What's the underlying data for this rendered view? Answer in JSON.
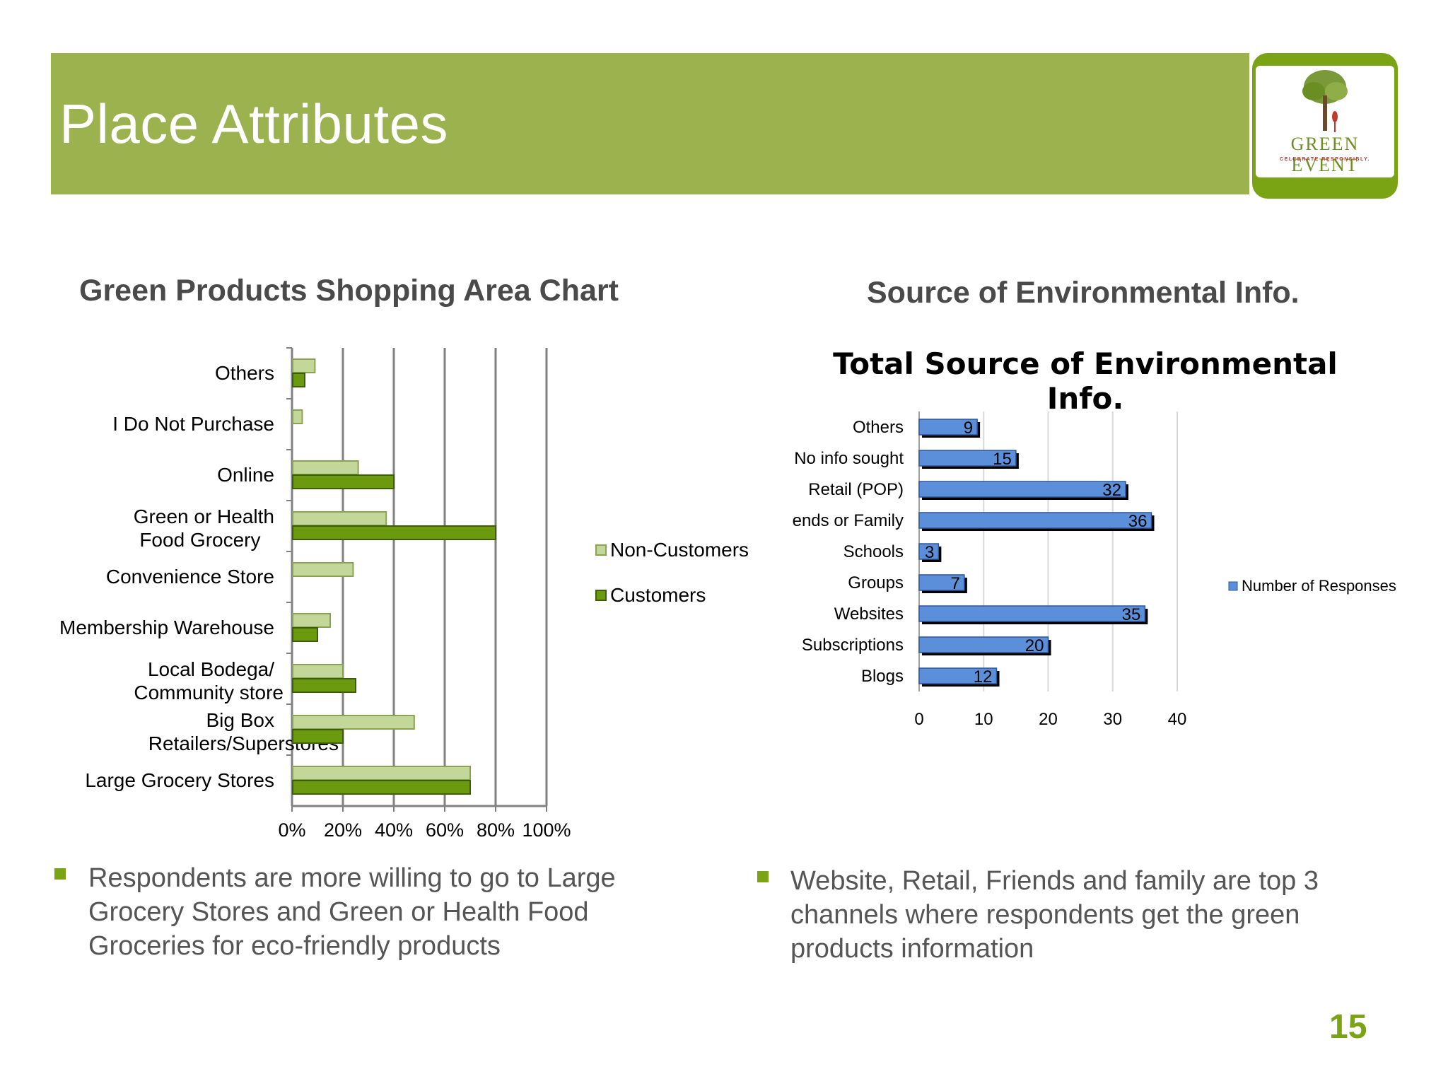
{
  "slide": {
    "title": "Place Attributes",
    "page_number": "15",
    "logo": {
      "name": "GREEN EVENT",
      "tagline": "CELEBRATE RESPONSIBLY."
    },
    "accent_color": "#9bb24f",
    "bullet_color": "#7aa413"
  },
  "left_section": {
    "heading": "Green Products Shopping Area Chart",
    "bullet": "Respondents are more willing to go to Large Grocery Stores and Green or Health Food Groceries for eco-friendly products"
  },
  "right_section": {
    "heading": "Source of Environmental Info.",
    "bullet": "Website, Retail, Friends and family are top 3 channels where respondents get the green products information"
  },
  "chart_data": [
    {
      "type": "bar",
      "orientation": "horizontal",
      "title": "",
      "categories": [
        "Others",
        "I Do Not Purchase",
        "Online",
        "Green or Health Food Grocery",
        "Convenience Store",
        "Membership Warehouse",
        "Local Bodega/ Community store",
        "Big Box Retailers/Superstores",
        "Large Grocery Stores"
      ],
      "series": [
        {
          "name": "Non-Customers",
          "color": "#c4d79b",
          "values": [
            9,
            4,
            26,
            37,
            24,
            15,
            20,
            48,
            70
          ]
        },
        {
          "name": "Customers",
          "color": "#6b9a0e",
          "values": [
            5,
            0,
            40,
            80,
            0,
            10,
            25,
            20,
            70
          ]
        }
      ],
      "xlim": [
        0,
        100
      ],
      "xticks": [
        "0%",
        "20%",
        "40%",
        "60%",
        "80%",
        "100%"
      ],
      "grid": true,
      "legend": "right"
    },
    {
      "type": "bar",
      "orientation": "horizontal",
      "title": "Total Source of Environmental Info.",
      "categories": [
        "Others",
        "No info sought",
        "Retail (POP)",
        "ends or Family",
        "Schools",
        "Groups",
        "Websites",
        "Subscriptions",
        "Blogs"
      ],
      "series": [
        {
          "name": "Number of Responses",
          "color": "#5b8fd9",
          "values": [
            9,
            15,
            32,
            36,
            3,
            7,
            35,
            20,
            12
          ]
        }
      ],
      "xlim": [
        0,
        40
      ],
      "xticks": [
        "0",
        "10",
        "20",
        "30",
        "40"
      ],
      "grid": true,
      "legend": "right"
    }
  ]
}
